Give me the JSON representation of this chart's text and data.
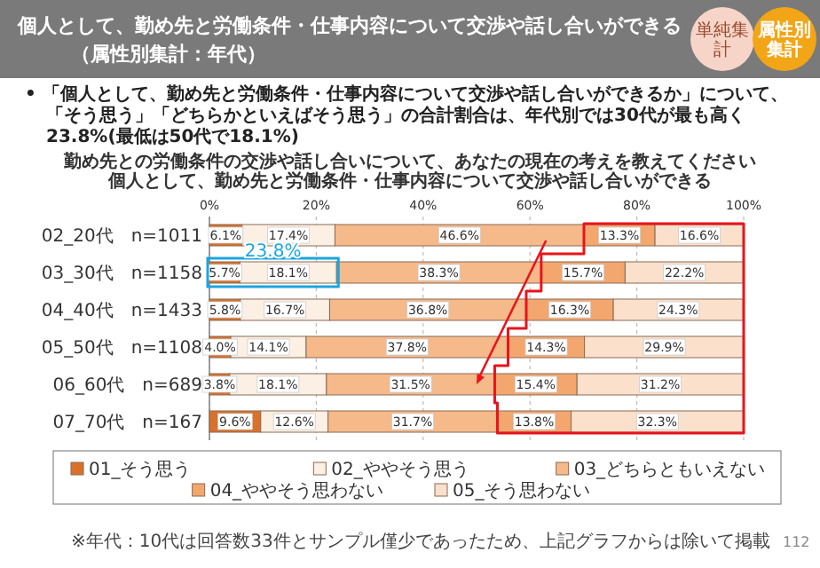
{
  "chart_data": {
    "type": "bar",
    "orientation": "horizontal",
    "stacked": true,
    "title": "個人として、勤め先と労働条件・仕事内容について交渉や話し合いができる",
    "subtitle": "（属性別集計：年代）",
    "annotations": [
      "単純集計",
      "属性別集計",
      "• 「個人として、勤め先と労働条件・仕事内容について交渉や話し合いができるか」について、「そう思う」「どちらかといえばそう思う」の合計割合は、年代別では30代が最も高く23.8%(最低は50代で18.1%)",
      "勤め先との労働条件の交渉や話し合いについて、あなたの現在の考えを教えてください",
      "個人として、勤め先と労働条件・仕事内容について交渉や話し合いができる",
      "※年代：10代は回答数33件とサンプル僅少であったため、上記グラフからは除いて掲載",
      "112",
      {
        "text": "23.8%",
        "x": 23.8,
        "y": "03_30代　n=1158"
      }
    ],
    "categories": [
      "02_20代　n=1011",
      "03_30代　n=1158",
      "04_40代　n=1433",
      "05_50代　n=1108",
      "06_60代　n=689",
      "07_70代　n=167"
    ],
    "xlim": [
      0,
      100
    ],
    "xticks": [
      {
        "value": 0,
        "label": "0%"
      },
      {
        "value": 20,
        "label": "20%"
      },
      {
        "value": 40,
        "label": "40%"
      },
      {
        "value": 60,
        "label": "60%"
      },
      {
        "value": 80,
        "label": "80%"
      },
      {
        "value": 100,
        "label": "100%"
      }
    ],
    "grid": "x",
    "legend": "bottom",
    "series": [
      {
        "name": "01_そう思う",
        "color": "#d9712b",
        "values": [
          6.1,
          5.7,
          5.8,
          4.0,
          3.8,
          9.6
        ],
        "value_labels": [
          "6.1%",
          "5.7%",
          "5.8%",
          "4.0%",
          "3.8%",
          "9.6%"
        ]
      },
      {
        "name": "02_ややそう思う",
        "color": "#fcefe4",
        "values": [
          17.4,
          18.1,
          16.7,
          14.1,
          18.1,
          12.6
        ],
        "value_labels": [
          "17.4%",
          "18.1%",
          "16.7%",
          "14.1%",
          "18.1%",
          "12.6%"
        ]
      },
      {
        "name": "03_どちらともいえない",
        "color": "#f5b98a",
        "values": [
          46.6,
          38.3,
          36.8,
          37.8,
          31.5,
          31.7
        ],
        "value_labels": [
          "46.6%",
          "38.3%",
          "36.8%",
          "37.8%",
          "31.5%",
          "31.7%"
        ]
      },
      {
        "name": "04_ややそう思わない",
        "color": "#f3a76e",
        "values": [
          13.3,
          15.7,
          16.3,
          14.3,
          15.4,
          13.8
        ],
        "value_labels": [
          "13.3%",
          "15.7%",
          "16.3%",
          "14.3%",
          "15.4%",
          "13.8%"
        ]
      },
      {
        "name": "05_そう思わない",
        "color": "#fbe0cb",
        "values": [
          16.6,
          22.2,
          24.3,
          29.9,
          31.2,
          32.3
        ],
        "value_labels": [
          "16.6%",
          "22.2%",
          "24.3%",
          "29.9%",
          "31.2%",
          "32.3%"
        ]
      }
    ]
  }
}
